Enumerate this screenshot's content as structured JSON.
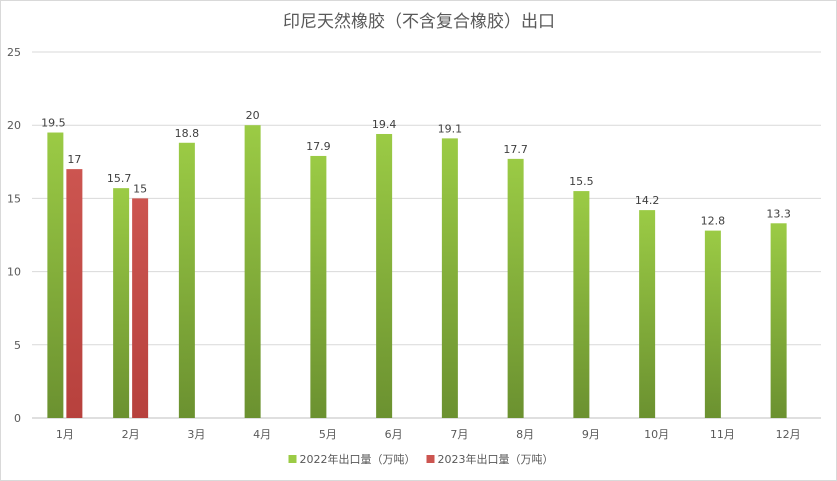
{
  "chart_data": {
    "type": "bar",
    "title": "印尼天然橡胶（不含复合橡胶）出口",
    "categories": [
      "1月",
      "2月",
      "3月",
      "4月",
      "5月",
      "6月",
      "7月",
      "8月",
      "9月",
      "10月",
      "11月",
      "12月"
    ],
    "series": [
      {
        "name": "2022年出口量（万吨）",
        "color_top": "#9bcb45",
        "color_bottom": "#6b9130",
        "values": [
          19.5,
          15.7,
          18.8,
          20,
          17.9,
          19.4,
          19.1,
          17.7,
          15.5,
          14.2,
          12.8,
          13.3
        ]
      },
      {
        "name": "2023年出口量（万吨）",
        "color_top": "#cc5550",
        "color_bottom": "#b7413d",
        "values": [
          17,
          15,
          null,
          null,
          null,
          null,
          null,
          null,
          null,
          null,
          null,
          null
        ]
      }
    ],
    "ylim": [
      0,
      25
    ],
    "yticks": [
      0,
      5,
      10,
      15,
      20,
      25
    ],
    "grid": true,
    "legend": "bottom"
  }
}
